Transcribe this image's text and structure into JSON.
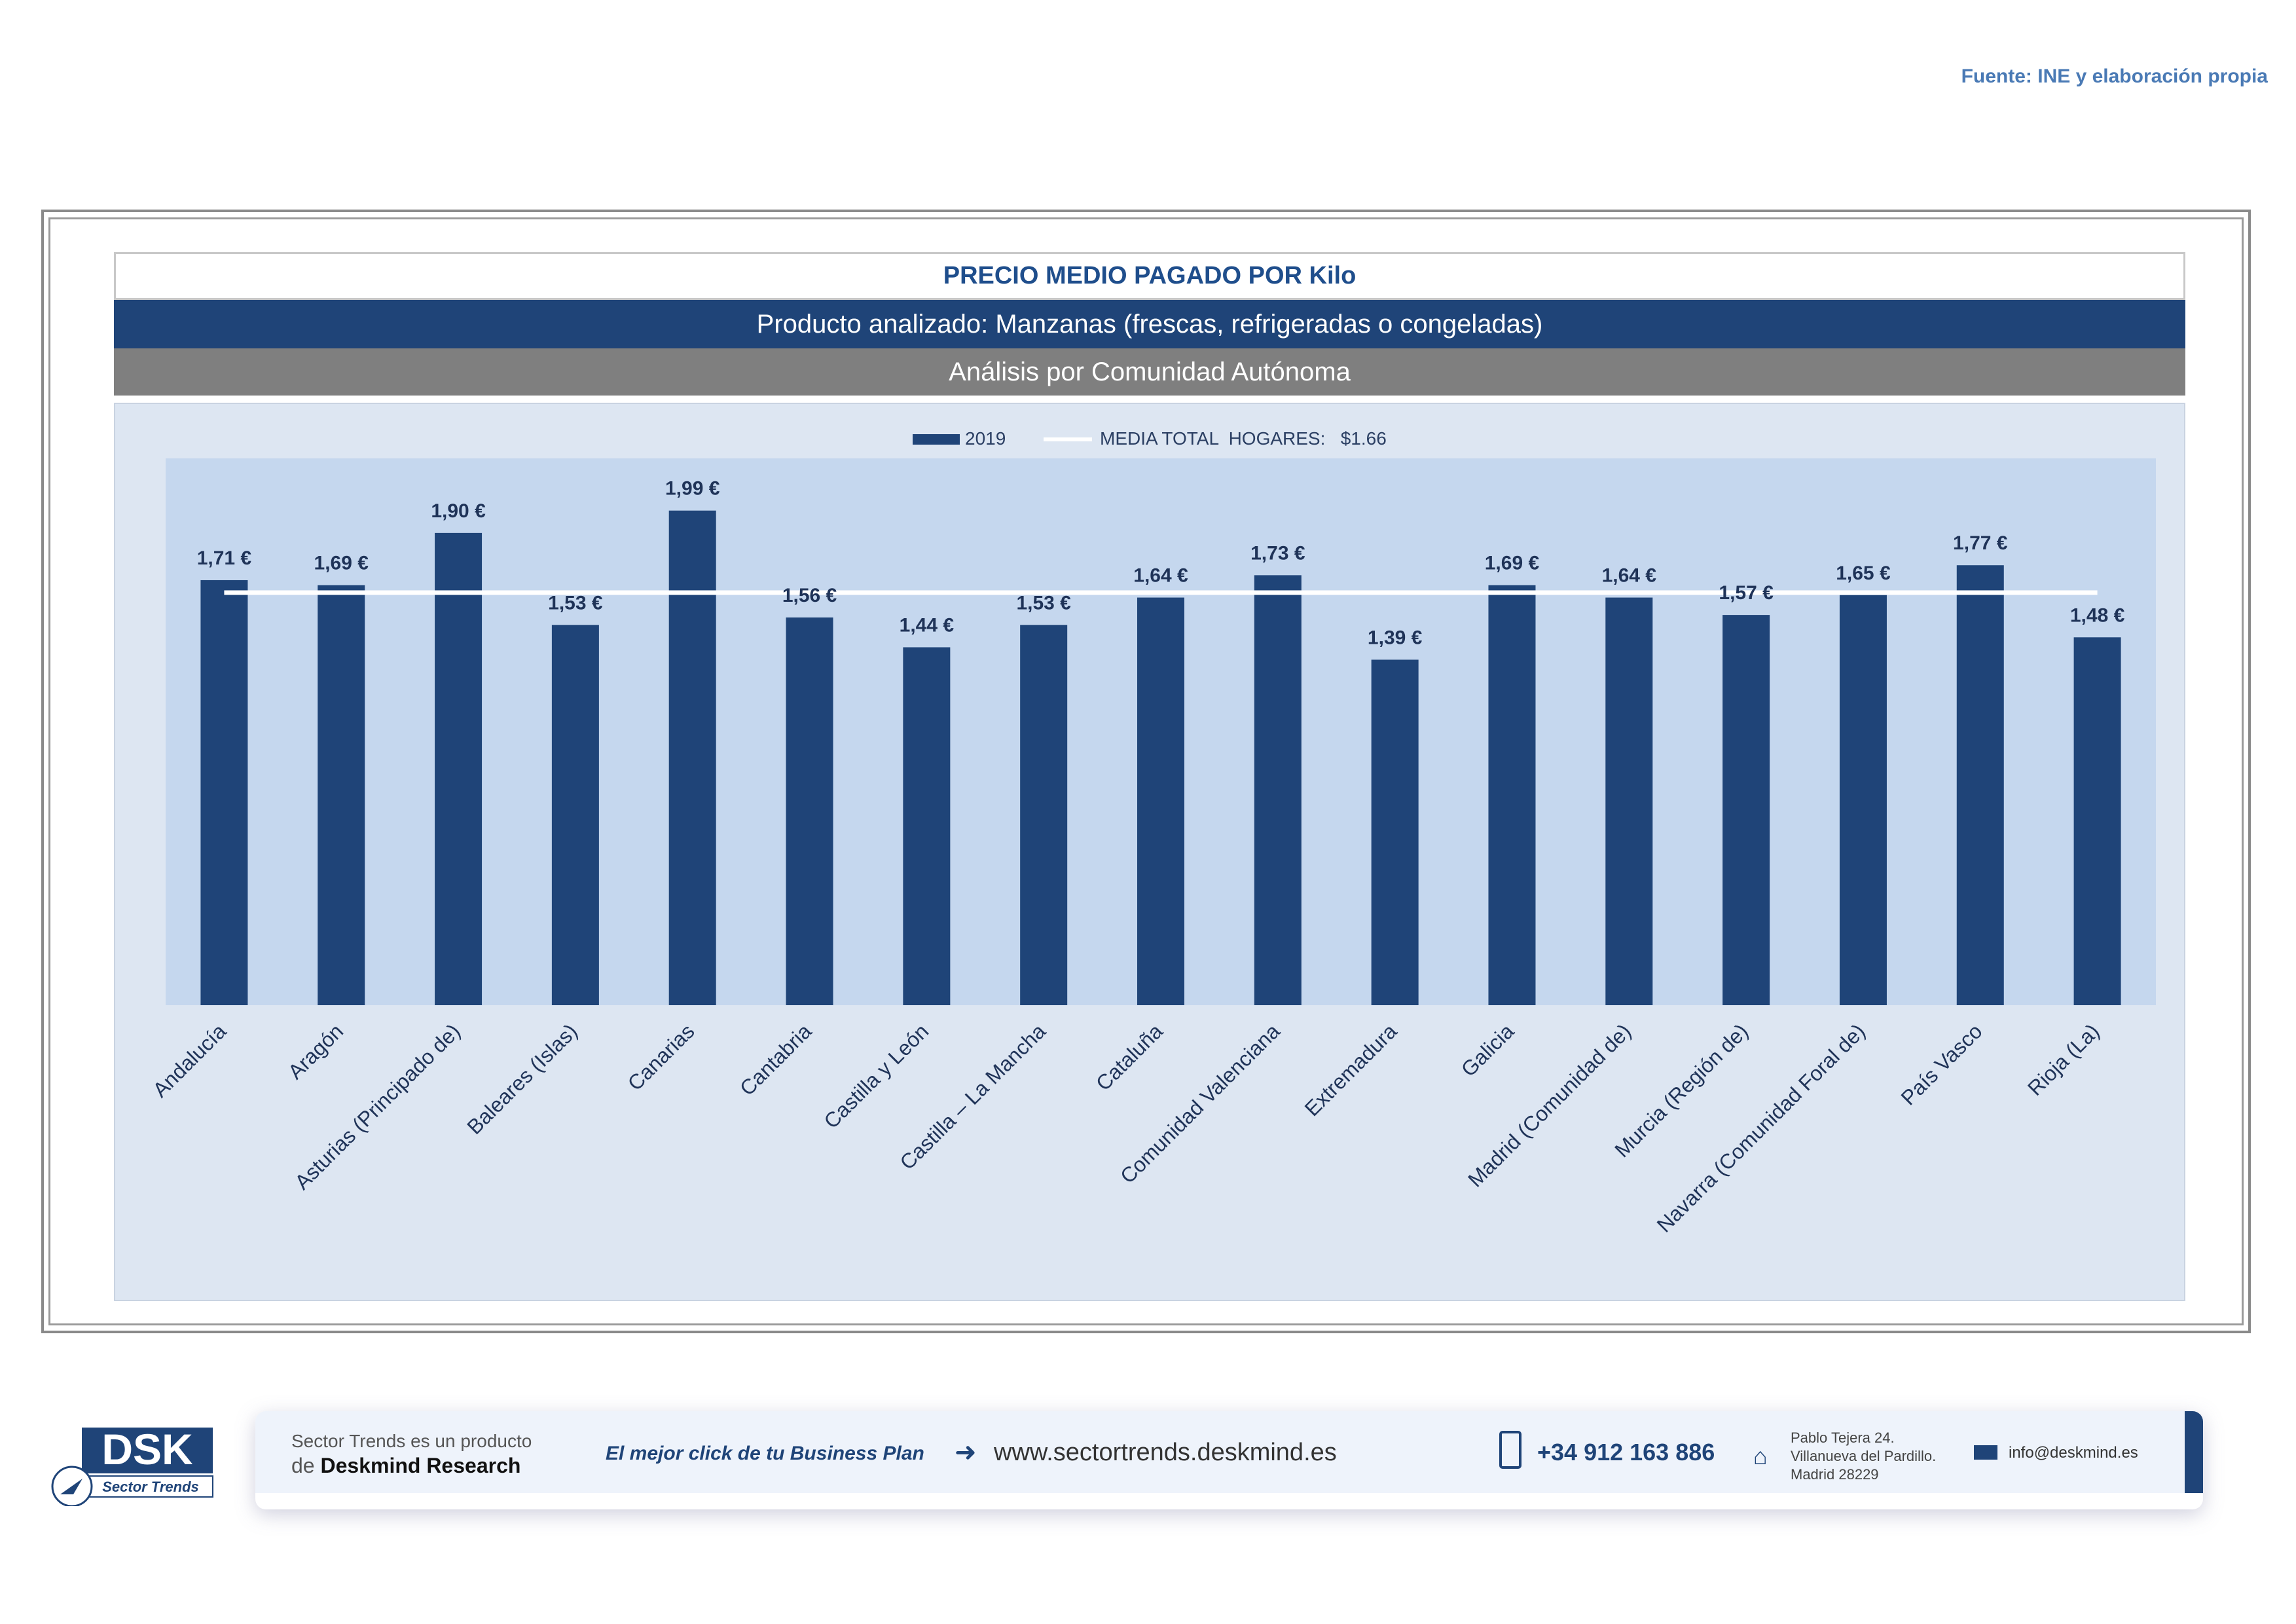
{
  "source": "Fuente: INE y elaboración propia",
  "header": {
    "title": "PRECIO MEDIO PAGADO POR Kilo",
    "product": "Producto analizado: Manzanas (frescas, refrigeradas o congeladas)",
    "analysis": "Análisis por Comunidad Autónoma"
  },
  "legend": {
    "series_label": "2019",
    "mean_label": "MEDIA TOTAL  HOGARES:   $1.66"
  },
  "chart_data": {
    "type": "bar",
    "title": "PRECIO MEDIO PAGADO POR Kilo",
    "xlabel": "",
    "ylabel": "",
    "ylim": [
      0,
      2.2
    ],
    "grid": false,
    "legend_position": "top",
    "categories": [
      "Andalucía",
      "Aragón",
      "Asturias (Principado de)",
      "Baleares (Islas)",
      "Canarias",
      "Cantabria",
      "Castilla y León",
      "Castilla – La Mancha",
      "Cataluña",
      "Comunidad Valenciana",
      "Extremadura",
      "Galicia",
      "Madrid (Comunidad de)",
      "Murcia (Región de)",
      "Navarra (Comunidad Foral de)",
      "País Vasco",
      "Rioja (La)"
    ],
    "series": [
      {
        "name": "2019",
        "color": "#1f4478",
        "values": [
          1.71,
          1.69,
          1.9,
          1.53,
          1.99,
          1.56,
          1.44,
          1.53,
          1.64,
          1.73,
          1.39,
          1.69,
          1.64,
          1.57,
          1.65,
          1.77,
          1.48
        ],
        "labels": [
          "1,71 €",
          "1,69 €",
          "1,90 €",
          "1,53 €",
          "1,99 €",
          "1,56 €",
          "1,44 €",
          "1,53 €",
          "1,64 €",
          "1,73 €",
          "1,39 €",
          "1,69 €",
          "1,64 €",
          "1,57 €",
          "1,65 €",
          "1,77 €",
          "1,48 €"
        ]
      }
    ],
    "reference_line": {
      "name": "MEDIA TOTAL  HOGARES",
      "value": 1.66,
      "color": "#ffffff"
    }
  },
  "footer": {
    "tagline_1": "Sector Trends es un producto",
    "tagline_2_prefix": "de",
    "tagline_2_brand": "Deskmind Research",
    "slogan": "El mejor click de tu Business Plan",
    "website": "www.sectortrends.deskmind.es",
    "phone": "+34 912 163 886",
    "address_1": "Pablo Tejera 24.",
    "address_2": "Villanueva del Pardillo.",
    "address_3": "Madrid 28229",
    "email": "info@deskmind.es",
    "logo_text": "DSK",
    "logo_sub": "Sector Trends"
  }
}
